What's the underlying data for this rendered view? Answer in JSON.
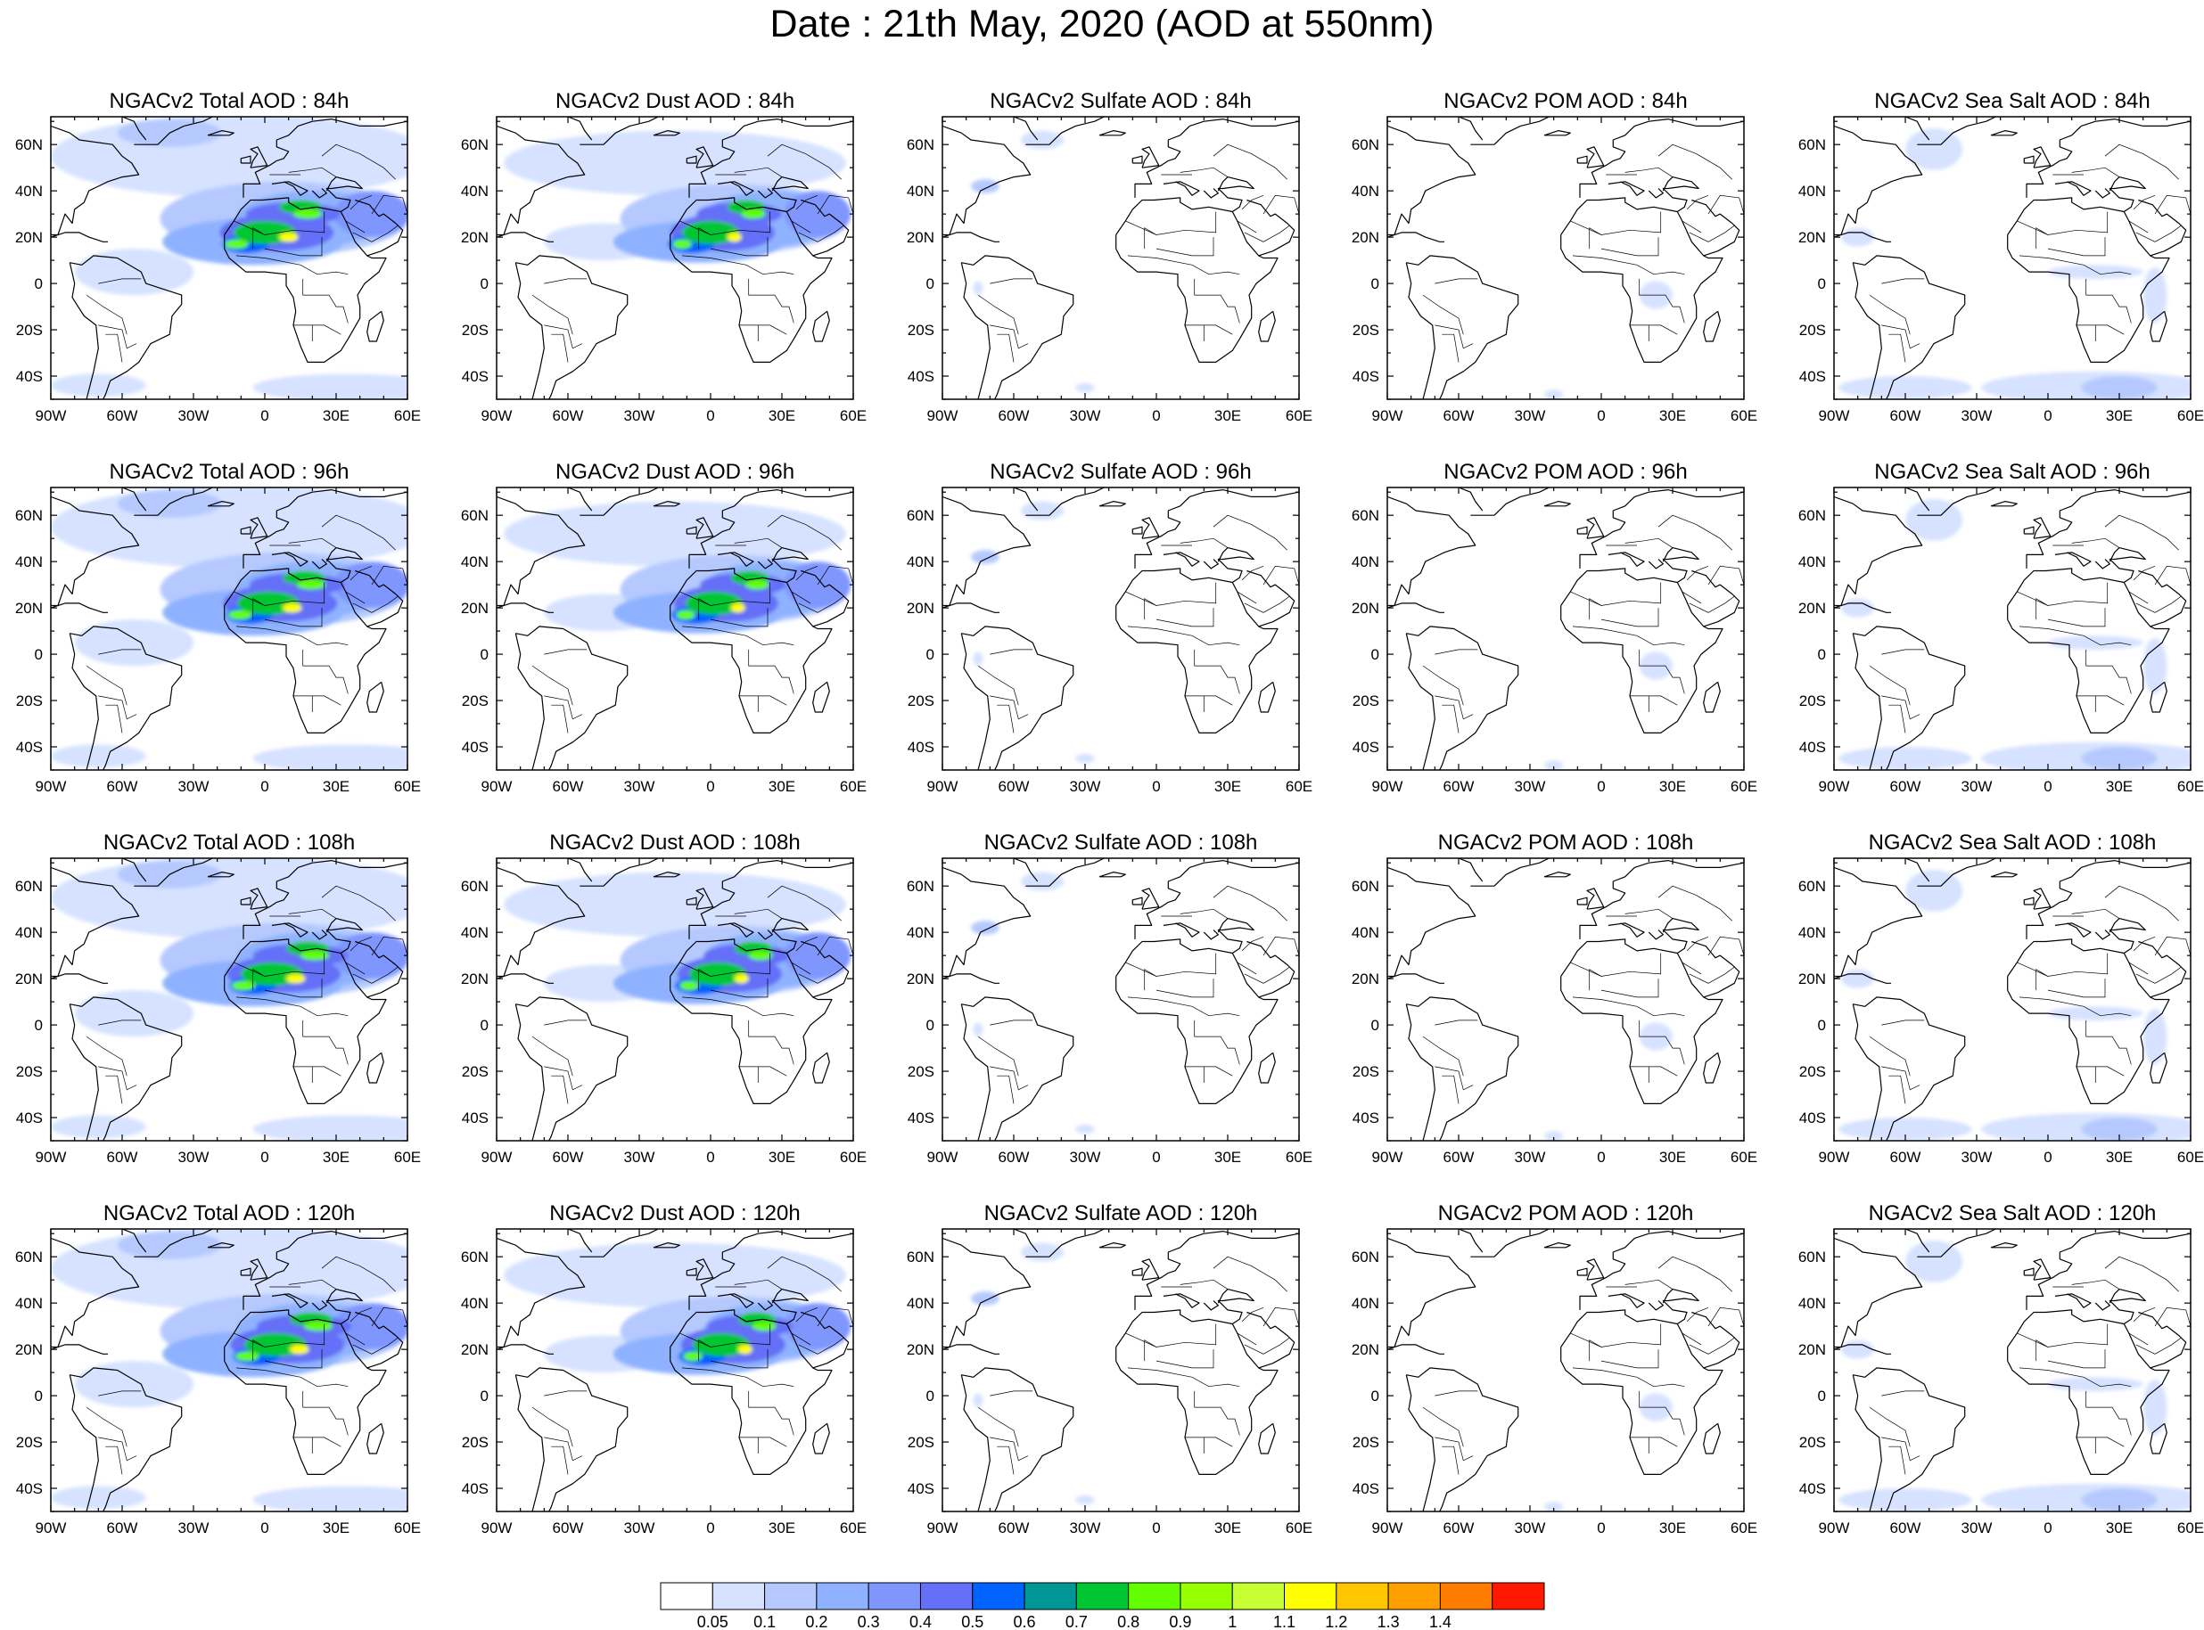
{
  "title": "Date : 21th May, 2020 (AOD at 550nm)",
  "map_extent": {
    "lon": [
      -90,
      60
    ],
    "lat": [
      -50,
      72
    ]
  },
  "lon_ticks": [
    {
      "v": -90,
      "label": "90W"
    },
    {
      "v": -60,
      "label": "60W"
    },
    {
      "v": -30,
      "label": "30W"
    },
    {
      "v": 0,
      "label": "0"
    },
    {
      "v": 30,
      "label": "30E"
    },
    {
      "v": 60,
      "label": "60E"
    }
  ],
  "lat_ticks": [
    {
      "v": 60,
      "label": "60N"
    },
    {
      "v": 40,
      "label": "40N"
    },
    {
      "v": 20,
      "label": "20N"
    },
    {
      "v": 0,
      "label": "0"
    },
    {
      "v": -20,
      "label": "20S"
    },
    {
      "v": -40,
      "label": "40S"
    }
  ],
  "columns": [
    {
      "species": "total",
      "titles": [
        "NGACv2 Total AOD : 84h",
        "NGACv2 Total AOD : 96h",
        "NGACv2 Total AOD : 108h",
        "NGACv2 Total AOD : 120h"
      ]
    },
    {
      "species": "dust",
      "titles": [
        "NGACv2 Dust AOD : 84h",
        "NGACv2 Dust AOD : 96h",
        "NGACv2 Dust AOD : 108h",
        "NGACv2 Dust AOD : 120h"
      ]
    },
    {
      "species": "sulfate",
      "titles": [
        "NGACv2 Sulfate AOD : 84h",
        "NGACv2 Sulfate AOD : 96h",
        "NGACv2 Sulfate AOD : 108h",
        "NGACv2 Sulfate AOD : 120h"
      ]
    },
    {
      "species": "pom",
      "titles": [
        "NGACv2 POM AOD : 84h",
        "NGACv2 POM AOD : 96h",
        "NGACv2 POM AOD : 108h",
        "NGACv2 POM AOD : 120h"
      ]
    },
    {
      "species": "seasalt",
      "titles": [
        "NGACv2 Sea Salt AOD : 84h",
        "NGACv2 Sea Salt AOD : 96h",
        "NGACv2 Sea Salt AOD : 108h",
        "NGACv2 Sea Salt  AOD : 120h"
      ]
    }
  ],
  "colorbar": {
    "colors": [
      "#ffffff",
      "#d6e2ff",
      "#b5c9ff",
      "#8eb2ff",
      "#7f96ff",
      "#6370f7",
      "#0063ff",
      "#009696",
      "#00c633",
      "#63ff00",
      "#96ff00",
      "#c6ff33",
      "#ffff00",
      "#ffc600",
      "#ffa000",
      "#ff7c00",
      "#ff1900"
    ],
    "labels": [
      "0.05",
      "0.1",
      "0.2",
      "0.3",
      "0.4",
      "0.5",
      "0.6",
      "0.7",
      "0.8",
      "0.9",
      "1",
      "1.1",
      "1.2",
      "1.3",
      "1.4"
    ]
  }
}
